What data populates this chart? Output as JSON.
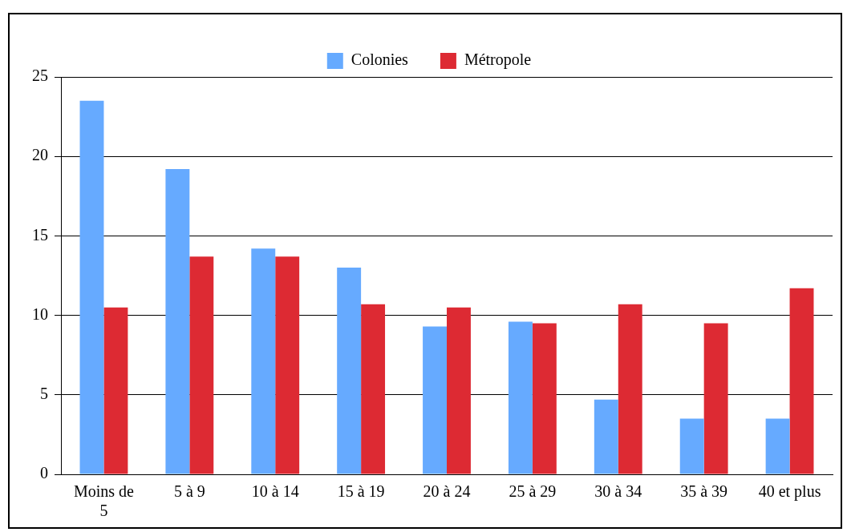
{
  "chart_data": {
    "type": "bar",
    "categories": [
      "Moins de 5",
      "5 à 9",
      "10 à 14",
      "15 à 19",
      "20 à 24",
      "25 à 29",
      "30 à 34",
      "35 à 39",
      "40 et plus"
    ],
    "series": [
      {
        "name": "Colonies",
        "color": "#66aaff",
        "values": [
          23.5,
          19.2,
          14.2,
          13.0,
          9.3,
          9.6,
          4.7,
          3.5,
          3.5
        ]
      },
      {
        "name": "Métropole",
        "color": "#dd2a33",
        "values": [
          10.5,
          13.7,
          13.7,
          10.7,
          10.5,
          9.5,
          10.7,
          9.5,
          11.7
        ]
      }
    ],
    "ylim": [
      0,
      25
    ],
    "yticks": [
      0,
      5,
      10,
      15,
      20,
      25
    ],
    "grid": "y",
    "legend": "top"
  }
}
